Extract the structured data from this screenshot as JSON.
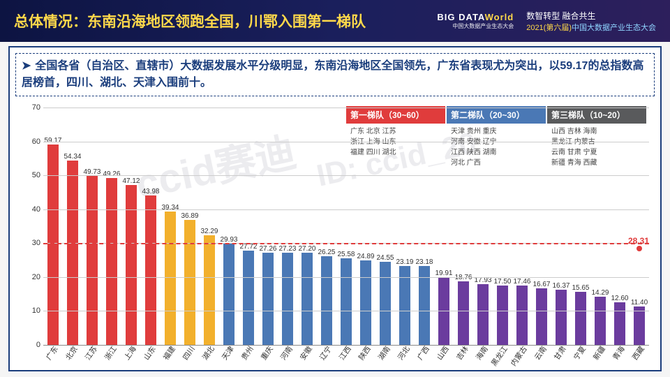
{
  "header": {
    "title": "总体情况：东南沿海地区领跑全国，川鄂入围第一梯队",
    "logo_line1_a": "BIG DATA",
    "logo_line1_b": "World",
    "logo_line2": "中国大数据产业生态大会",
    "right1": "数智转型  融合共生",
    "right2_a": "2021(第六届)",
    "right2_b": "中国大数据产业生态大会"
  },
  "summary": "全国各省（自治区、直辖市）大数据发展水平分级明显，东南沿海地区全国领先，广东省表现尤为突出，以59.17的总指数高居榜首，四川、湖北、天津入围前十。",
  "chart": {
    "type": "bar",
    "ylim": [
      0,
      70
    ],
    "ytick_step": 10,
    "avg_value": 28.31,
    "avg_label": "28.31",
    "baseline_dash_at": 30,
    "background_color": "#ffffff",
    "grid_color": "#cccccc",
    "bars": [
      {
        "label": "广东",
        "value": 59.17,
        "color": "#e03c3c"
      },
      {
        "label": "北京",
        "value": 54.34,
        "color": "#e03c3c"
      },
      {
        "label": "江苏",
        "value": 49.73,
        "color": "#e03c3c"
      },
      {
        "label": "浙江",
        "value": 49.26,
        "color": "#e03c3c"
      },
      {
        "label": "上海",
        "value": 47.12,
        "color": "#e03c3c"
      },
      {
        "label": "山东",
        "value": 43.98,
        "color": "#e03c3c"
      },
      {
        "label": "福建",
        "value": 39.34,
        "color": "#f2b02c"
      },
      {
        "label": "四川",
        "value": 36.89,
        "color": "#f2b02c"
      },
      {
        "label": "湖北",
        "value": 32.29,
        "color": "#f2b02c"
      },
      {
        "label": "天津",
        "value": 29.93,
        "color": "#4a78b5"
      },
      {
        "label": "贵州",
        "value": 27.72,
        "color": "#4a78b5"
      },
      {
        "label": "重庆",
        "value": 27.26,
        "color": "#4a78b5"
      },
      {
        "label": "河南",
        "value": 27.23,
        "color": "#4a78b5"
      },
      {
        "label": "安徽",
        "value": 27.2,
        "color": "#4a78b5"
      },
      {
        "label": "辽宁",
        "value": 26.25,
        "color": "#4a78b5"
      },
      {
        "label": "江西",
        "value": 25.58,
        "color": "#4a78b5"
      },
      {
        "label": "陕西",
        "value": 24.89,
        "color": "#4a78b5"
      },
      {
        "label": "湖南",
        "value": 24.55,
        "color": "#4a78b5"
      },
      {
        "label": "河北",
        "value": 23.19,
        "color": "#4a78b5"
      },
      {
        "label": "广西",
        "value": 23.18,
        "color": "#4a78b5"
      },
      {
        "label": "山西",
        "value": 19.91,
        "color": "#6b3c9e"
      },
      {
        "label": "吉林",
        "value": 18.76,
        "color": "#6b3c9e"
      },
      {
        "label": "海南",
        "value": 17.93,
        "color": "#6b3c9e"
      },
      {
        "label": "黑龙江",
        "value": 17.5,
        "color": "#6b3c9e"
      },
      {
        "label": "内蒙古",
        "value": 17.46,
        "color": "#6b3c9e"
      },
      {
        "label": "云南",
        "value": 16.67,
        "color": "#6b3c9e"
      },
      {
        "label": "甘肃",
        "value": 16.37,
        "color": "#6b3c9e"
      },
      {
        "label": "宁夏",
        "value": 15.65,
        "color": "#6b3c9e"
      },
      {
        "label": "新疆",
        "value": 14.29,
        "color": "#6b3c9e"
      },
      {
        "label": "青海",
        "value": 12.6,
        "color": "#6b3c9e"
      },
      {
        "label": "西藏",
        "value": 11.4,
        "color": "#6b3c9e"
      }
    ]
  },
  "legend": {
    "groups": [
      {
        "title": "第一梯队（30~60）",
        "color": "#e03c3c",
        "items": "广东  北京  江苏\n浙江  上海  山东\n福建  四川  湖北"
      },
      {
        "title": "第二梯队（20~30）",
        "color": "#4a78b5",
        "items": "天津  贵州  重庆\n河南  安徽  辽宁\n江西  陕西  湖南\n河北  广西"
      },
      {
        "title": "第三梯队（10~20）",
        "color": "#595a5c",
        "items": "山西  吉林  海南\n黑龙江  内蒙古\n云南  甘肃  宁夏\n新疆  青海  西藏"
      }
    ]
  },
  "watermark1": "ccid赛迪",
  "watermark2": "ID: ccid_20"
}
